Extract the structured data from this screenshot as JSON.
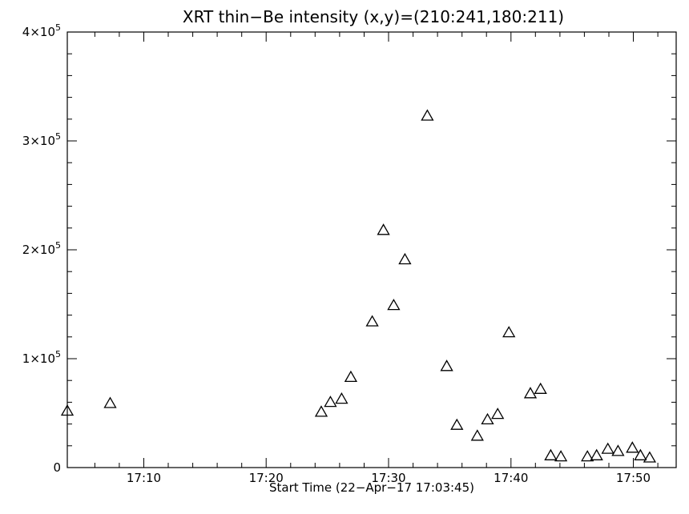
{
  "chart_data": {
    "type": "scatter",
    "title": "XRT thin−Be intensity (x,y)=(210:241,180:211)",
    "xlabel": "Start Time (22−Apr−17 17:03:45)",
    "ylabel": "",
    "xlim": [
      "17:03:45",
      "17:53:30"
    ],
    "ylim": [
      0,
      400000
    ],
    "x_ticks": [
      "17:10",
      "17:20",
      "17:30",
      "17:40",
      "17:50"
    ],
    "y_ticks": [
      {
        "value": 0,
        "mantissa": "0",
        "exponent": ""
      },
      {
        "value": 100000,
        "mantissa": "1×10",
        "exponent": "5"
      },
      {
        "value": 200000,
        "mantissa": "2×10",
        "exponent": "5"
      },
      {
        "value": 300000,
        "mantissa": "3×10",
        "exponent": "5"
      },
      {
        "value": 400000,
        "mantissa": "4×10",
        "exponent": "5"
      }
    ],
    "marker": "triangle-open",
    "grid": false,
    "x": [
      "17:03:45",
      "17:07:15",
      "17:24:30",
      "17:25:15",
      "17:26:10",
      "17:26:55",
      "17:28:40",
      "17:29:35",
      "17:30:25",
      "17:31:20",
      "17:33:10",
      "17:34:45",
      "17:35:35",
      "17:37:15",
      "17:38:05",
      "17:38:55",
      "17:39:50",
      "17:41:35",
      "17:42:25",
      "17:43:15",
      "17:44:05",
      "17:46:15",
      "17:47:00",
      "17:47:55",
      "17:48:45",
      "17:49:55",
      "17:50:35",
      "17:51:20"
    ],
    "y": [
      52000,
      59000,
      51000,
      60000,
      63000,
      83000,
      134000,
      218000,
      149000,
      191000,
      323000,
      93000,
      39000,
      29000,
      44000,
      49000,
      124000,
      68000,
      72000,
      11000,
      10000,
      10000,
      11000,
      17000,
      15000,
      18000,
      11000,
      9000
    ]
  }
}
